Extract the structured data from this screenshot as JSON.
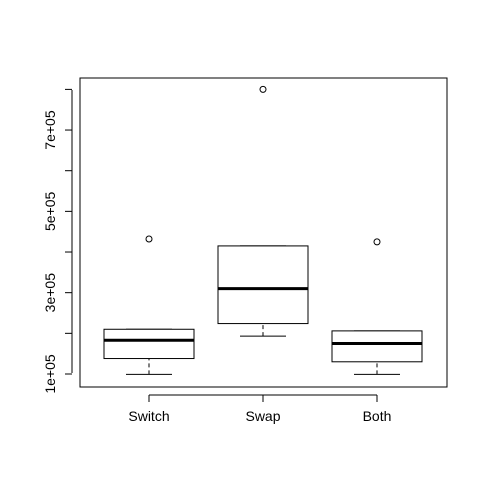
{
  "chart_data": {
    "type": "boxplot",
    "title": "",
    "xlabel": "",
    "ylabel": "",
    "categories": [
      "Switch",
      "Swap",
      "Both"
    ],
    "boxes": [
      {
        "name": "Switch",
        "whisker_low": 99000,
        "q1": 138000,
        "median": 183000,
        "q3": 210000,
        "whisker_high": 210000,
        "outliers": [
          432000
        ]
      },
      {
        "name": "Swap",
        "whisker_low": 193000,
        "q1": 224000,
        "median": 310000,
        "q3": 415000,
        "whisker_high": 415000,
        "outliers": [
          800000
        ]
      },
      {
        "name": "Both",
        "whisker_low": 99000,
        "q1": 130000,
        "median": 175000,
        "q3": 206000,
        "whisker_high": 206000,
        "outliers": [
          425000
        ]
      }
    ],
    "y_ticks": [
      100000,
      200000,
      300000,
      400000,
      500000,
      600000,
      700000,
      800000
    ],
    "y_tick_labels": [
      "1e+05",
      "",
      "3e+05",
      "",
      "5e+05",
      "",
      "7e+05",
      ""
    ],
    "ylim": [
      68000,
      828000
    ],
    "grid": false,
    "legend": "none"
  }
}
